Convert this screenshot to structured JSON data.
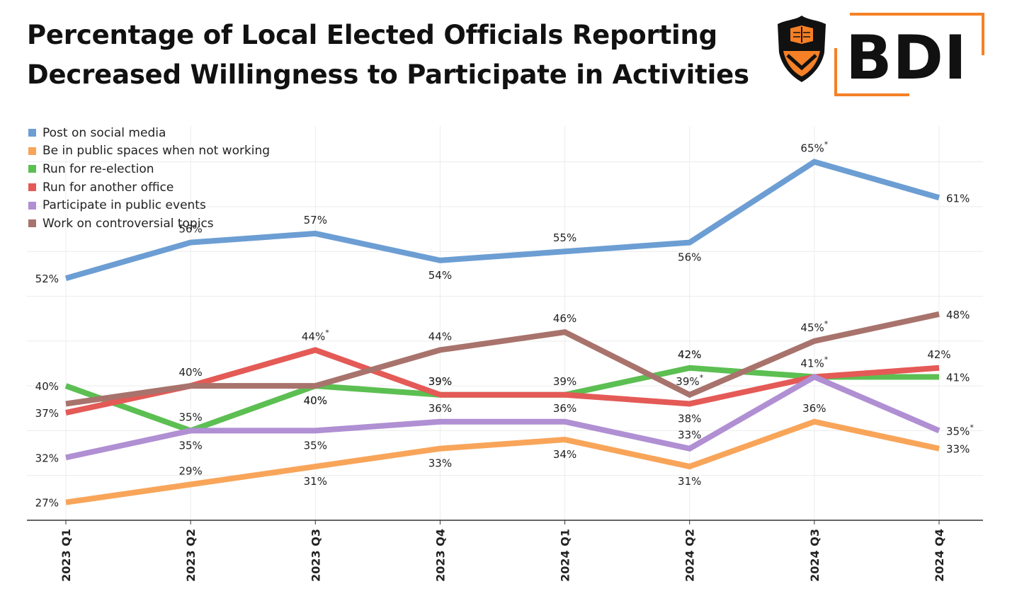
{
  "title_lines": [
    "Percentage of Local Elected Officials Reporting",
    "Decreased Willingness to Participate in Activities"
  ],
  "logo": {
    "text": "BDI",
    "accent_color": "#f58025",
    "shield_color": "#000000"
  },
  "colors": {
    "blue": "#6c9ed3",
    "orange": "#f8a55a",
    "green": "#5cbf52",
    "red": "#e45a56",
    "purple": "#b08fd3",
    "brown": "#a8736c"
  },
  "chart_data": {
    "type": "line",
    "categories": [
      "2023 Q1",
      "2023 Q2",
      "2023 Q3",
      "2023 Q4",
      "2024 Q1",
      "2024 Q2",
      "2024 Q3",
      "2024 Q4"
    ],
    "ylim": [
      25,
      69
    ],
    "grid": true,
    "legend_position": "top-left",
    "series": [
      {
        "name": "Post on social media",
        "color": "#6c9ed3",
        "values": [
          52,
          56,
          57,
          54,
          55,
          56,
          65,
          61
        ],
        "labels": [
          "52%",
          "56%",
          "57%",
          "54%",
          "55%",
          "56%",
          "65%*",
          "61%"
        ],
        "label_pos": [
          "left",
          "above",
          "above",
          "below",
          "above",
          "below",
          "above",
          "right"
        ]
      },
      {
        "name": "Be in public spaces when not working",
        "color": "#f8a55a",
        "values": [
          27,
          29,
          31,
          33,
          34,
          31,
          36,
          33
        ],
        "labels": [
          "27%",
          "29%",
          "31%",
          "33%",
          "34%",
          "31%",
          "36%",
          "33%"
        ],
        "label_pos": [
          "left",
          "above",
          "below",
          "below",
          "below",
          "below",
          "above",
          "right"
        ]
      },
      {
        "name": "Run for re-election",
        "color": "#5cbf52",
        "values": [
          40,
          35,
          40,
          39,
          39,
          42,
          41,
          41
        ],
        "labels": [
          "40%",
          "",
          "",
          "39%",
          "39%",
          "42%",
          "",
          "41%"
        ],
        "label_pos": [
          "left",
          "above",
          "above",
          "above",
          "above",
          "above",
          "above",
          "right"
        ]
      },
      {
        "name": "Run for another office",
        "color": "#e45a56",
        "values": [
          37,
          40,
          44,
          39,
          39,
          38,
          41,
          42
        ],
        "labels": [
          "37%",
          "",
          "",
          "",
          "",
          "38%",
          "",
          "42%"
        ],
        "label_pos": [
          "left",
          "above",
          "above",
          "above",
          "above",
          "below",
          "above",
          "above"
        ]
      },
      {
        "name": "Participate in public events",
        "color": "#b08fd3",
        "values": [
          32,
          35,
          35,
          36,
          36,
          33,
          41,
          35
        ],
        "labels": [
          "32%",
          "35%",
          "35%",
          "36%",
          "36%",
          "33%",
          "41%*",
          "35%*"
        ],
        "label_pos": [
          "left",
          "above",
          "below",
          "above",
          "above",
          "above",
          "above",
          "right"
        ]
      },
      {
        "name": "Work on controversial topics",
        "color": "#a8736c",
        "values": [
          38,
          40,
          40,
          44,
          46,
          39,
          45,
          48
        ],
        "labels": [
          "",
          "40%",
          "40%",
          "44%",
          "46%",
          "39%*",
          "45%*",
          "48%"
        ],
        "label_pos": [
          "left",
          "above",
          "below",
          "above",
          "above",
          "above",
          "above",
          "right"
        ]
      }
    ],
    "extra_labels": [
      {
        "category": "2023 Q2",
        "y": 35,
        "text": "35%",
        "pos": "below"
      },
      {
        "category": "2023 Q3",
        "y": 44,
        "text": "44%*",
        "pos": "above"
      },
      {
        "category": "2023 Q3",
        "y": 40,
        "text": "40%",
        "pos": "below"
      },
      {
        "category": "2023 Q4",
        "y": 39,
        "text": "39%",
        "pos": "above"
      },
      {
        "category": "2024 Q2",
        "y": 42,
        "text": "42%",
        "pos": "above"
      }
    ]
  }
}
